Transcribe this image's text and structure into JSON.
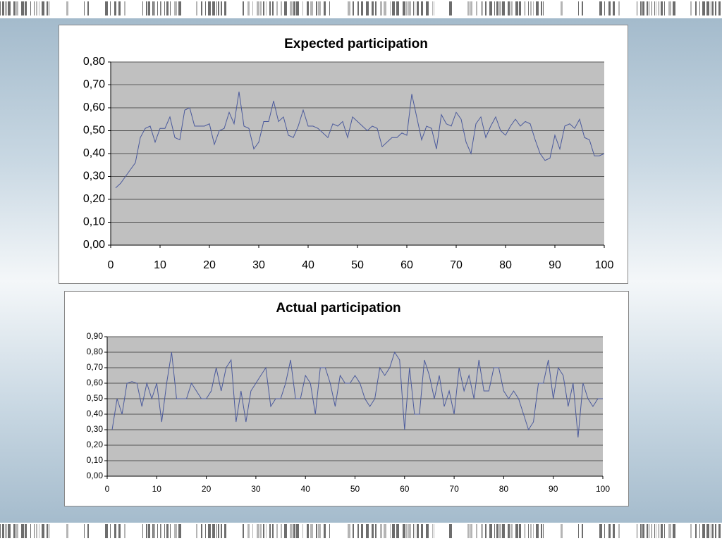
{
  "chart_data": [
    {
      "type": "line",
      "title": "Expected participation",
      "color": "#4b5a9c",
      "grid": true,
      "x": [
        1,
        2,
        3,
        4,
        5,
        6,
        7,
        8,
        9,
        10,
        11,
        12,
        13,
        14,
        15,
        16,
        17,
        18,
        19,
        20,
        21,
        22,
        23,
        24,
        25,
        26,
        27,
        28,
        29,
        30,
        31,
        32,
        33,
        34,
        35,
        36,
        37,
        38,
        39,
        40,
        41,
        42,
        43,
        44,
        45,
        46,
        47,
        48,
        49,
        50,
        51,
        52,
        53,
        54,
        55,
        56,
        57,
        58,
        59,
        60,
        61,
        62,
        63,
        64,
        65,
        66,
        67,
        68,
        69,
        70,
        71,
        72,
        73,
        74,
        75,
        76,
        77,
        78,
        79,
        80,
        81,
        82,
        83,
        84,
        85,
        86,
        87,
        88,
        89,
        90,
        91,
        92,
        93,
        94,
        95,
        96,
        97,
        98,
        99,
        100
      ],
      "values": [
        0.25,
        0.27,
        0.3,
        0.33,
        0.36,
        0.47,
        0.51,
        0.52,
        0.45,
        0.51,
        0.51,
        0.56,
        0.47,
        0.46,
        0.59,
        0.6,
        0.52,
        0.52,
        0.52,
        0.53,
        0.44,
        0.5,
        0.51,
        0.58,
        0.53,
        0.67,
        0.52,
        0.51,
        0.42,
        0.45,
        0.54,
        0.54,
        0.63,
        0.54,
        0.56,
        0.48,
        0.47,
        0.52,
        0.59,
        0.52,
        0.52,
        0.51,
        0.49,
        0.47,
        0.53,
        0.52,
        0.54,
        0.47,
        0.56,
        0.54,
        0.52,
        0.5,
        0.52,
        0.51,
        0.43,
        0.45,
        0.47,
        0.47,
        0.49,
        0.48,
        0.66,
        0.56,
        0.46,
        0.52,
        0.51,
        0.42,
        0.57,
        0.53,
        0.52,
        0.58,
        0.55,
        0.45,
        0.4,
        0.53,
        0.56,
        0.47,
        0.52,
        0.56,
        0.5,
        0.48,
        0.52,
        0.55,
        0.52,
        0.54,
        0.53,
        0.46,
        0.4,
        0.37,
        0.38,
        0.48,
        0.42,
        0.52,
        0.53,
        0.51,
        0.55,
        0.47,
        0.46,
        0.39,
        0.39,
        0.4
      ],
      "xlim": [
        0,
        100
      ],
      "xticks": [
        0,
        10,
        20,
        30,
        40,
        50,
        60,
        70,
        80,
        90,
        100
      ],
      "ylim": [
        0,
        0.8
      ],
      "yticks": [
        {
          "value": 0,
          "label": "0,00"
        },
        {
          "value": 0.1,
          "label": "0,10"
        },
        {
          "value": 0.2,
          "label": "0,20"
        },
        {
          "value": 0.3,
          "label": "0,30"
        },
        {
          "value": 0.4,
          "label": "0,40"
        },
        {
          "value": 0.5,
          "label": "0,50"
        },
        {
          "value": 0.6,
          "label": "0,60"
        },
        {
          "value": 0.7,
          "label": "0,70"
        },
        {
          "value": 0.8,
          "label": "0,80"
        }
      ]
    },
    {
      "type": "line",
      "title": "Actual participation",
      "color": "#4b5a9c",
      "grid": true,
      "x": [
        1,
        2,
        3,
        4,
        5,
        6,
        7,
        8,
        9,
        10,
        11,
        12,
        13,
        14,
        15,
        16,
        17,
        18,
        19,
        20,
        21,
        22,
        23,
        24,
        25,
        26,
        27,
        28,
        29,
        30,
        31,
        32,
        33,
        34,
        35,
        36,
        37,
        38,
        39,
        40,
        41,
        42,
        43,
        44,
        45,
        46,
        47,
        48,
        49,
        50,
        51,
        52,
        53,
        54,
        55,
        56,
        57,
        58,
        59,
        60,
        61,
        62,
        63,
        64,
        65,
        66,
        67,
        68,
        69,
        70,
        71,
        72,
        73,
        74,
        75,
        76,
        77,
        78,
        79,
        80,
        81,
        82,
        83,
        84,
        85,
        86,
        87,
        88,
        89,
        90,
        91,
        92,
        93,
        94,
        95,
        96,
        97,
        98,
        99,
        100
      ],
      "values": [
        0.3,
        0.5,
        0.4,
        0.6,
        0.61,
        0.6,
        0.45,
        0.6,
        0.5,
        0.6,
        0.35,
        0.6,
        0.8,
        0.5,
        0.5,
        0.5,
        0.6,
        0.55,
        0.5,
        0.5,
        0.55,
        0.7,
        0.55,
        0.7,
        0.75,
        0.35,
        0.55,
        0.35,
        0.55,
        0.6,
        0.65,
        0.7,
        0.45,
        0.5,
        0.5,
        0.6,
        0.75,
        0.5,
        0.5,
        0.65,
        0.6,
        0.4,
        0.7,
        0.7,
        0.6,
        0.45,
        0.65,
        0.6,
        0.6,
        0.65,
        0.6,
        0.5,
        0.45,
        0.5,
        0.7,
        0.65,
        0.7,
        0.8,
        0.75,
        0.3,
        0.7,
        0.4,
        0.4,
        0.75,
        0.65,
        0.5,
        0.65,
        0.45,
        0.55,
        0.4,
        0.7,
        0.55,
        0.65,
        0.5,
        0.75,
        0.55,
        0.55,
        0.7,
        0.7,
        0.55,
        0.5,
        0.55,
        0.5,
        0.4,
        0.3,
        0.35,
        0.6,
        0.6,
        0.75,
        0.5,
        0.7,
        0.65,
        0.45,
        0.6,
        0.25,
        0.6,
        0.5,
        0.45,
        0.5,
        0.5
      ],
      "xlim": [
        0,
        100
      ],
      "xticks": [
        0,
        10,
        20,
        30,
        40,
        50,
        60,
        70,
        80,
        90,
        100
      ],
      "ylim": [
        0,
        0.9
      ],
      "yticks": [
        {
          "value": 0,
          "label": "0,00"
        },
        {
          "value": 0.1,
          "label": "0,10"
        },
        {
          "value": 0.2,
          "label": "0,20"
        },
        {
          "value": 0.3,
          "label": "0,30"
        },
        {
          "value": 0.4,
          "label": "0,40"
        },
        {
          "value": 0.5,
          "label": "0,50"
        },
        {
          "value": 0.6,
          "label": "0,60"
        },
        {
          "value": 0.7,
          "label": "0,70"
        },
        {
          "value": 0.8,
          "label": "0,80"
        },
        {
          "value": 0.9,
          "label": "0,90"
        }
      ]
    }
  ]
}
